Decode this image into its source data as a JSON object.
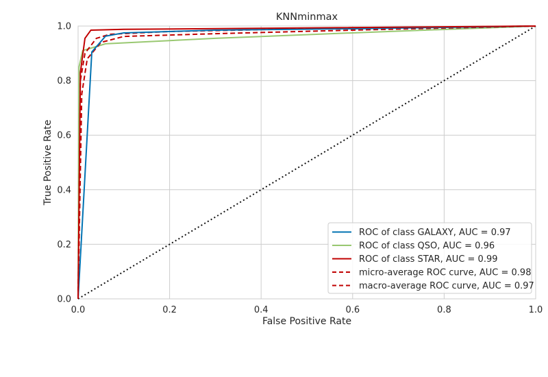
{
  "chart_data": {
    "type": "line",
    "title": "KNNminmax",
    "xlabel": "False Positive Rate",
    "ylabel": "True Positive Rate",
    "xlim": [
      0,
      1
    ],
    "ylim": [
      0,
      1
    ],
    "xticks": [
      "0.0",
      "0.2",
      "0.4",
      "0.6",
      "0.8",
      "1.0"
    ],
    "yticks": [
      "0.0",
      "0.2",
      "0.4",
      "0.6",
      "0.8",
      "1.0"
    ],
    "grid": true,
    "legend_position": "lower-right",
    "series": [
      {
        "name": "ROC of class GALAXY, AUC = 0.97",
        "color": "#0072B2",
        "dash": "solid",
        "x": [
          0,
          0.03,
          0.06,
          0.1,
          0.3,
          0.6,
          1
        ],
        "y": [
          0,
          0.905,
          0.963,
          0.975,
          0.985,
          0.99,
          1
        ]
      },
      {
        "name": "ROC of class QSO, AUC = 0.96",
        "color": "#99C871",
        "dash": "solid",
        "x": [
          0,
          0.002,
          0.01,
          0.06,
          0.3,
          0.6,
          1
        ],
        "y": [
          0,
          0.85,
          0.91,
          0.935,
          0.955,
          0.975,
          1
        ]
      },
      {
        "name": "ROC of class STAR, AUC = 0.99",
        "color": "#C00000",
        "dash": "solid",
        "x": [
          0,
          0.005,
          0.015,
          0.028,
          0.1,
          0.5,
          1
        ],
        "y": [
          0,
          0.83,
          0.955,
          0.985,
          0.988,
          0.993,
          1
        ]
      },
      {
        "name": "micro-average ROC curve, AUC = 0.98",
        "color": "#C00000",
        "dash": "dashed",
        "x": [
          0,
          0.005,
          0.015,
          0.04,
          0.07,
          0.2,
          0.5,
          1
        ],
        "y": [
          0,
          0.8,
          0.9,
          0.955,
          0.97,
          0.98,
          0.99,
          1
        ]
      },
      {
        "name": "macro-average ROC curve, AUC = 0.97",
        "color": "#C00000",
        "dash": "dashed",
        "x": [
          0,
          0.008,
          0.02,
          0.05,
          0.1,
          0.3,
          0.6,
          1
        ],
        "y": [
          0,
          0.75,
          0.88,
          0.94,
          0.962,
          0.972,
          0.985,
          1
        ]
      },
      {
        "name": "",
        "color": "#111111",
        "dash": "dotted",
        "x": [
          0,
          1
        ],
        "y": [
          0,
          1
        ]
      }
    ]
  }
}
